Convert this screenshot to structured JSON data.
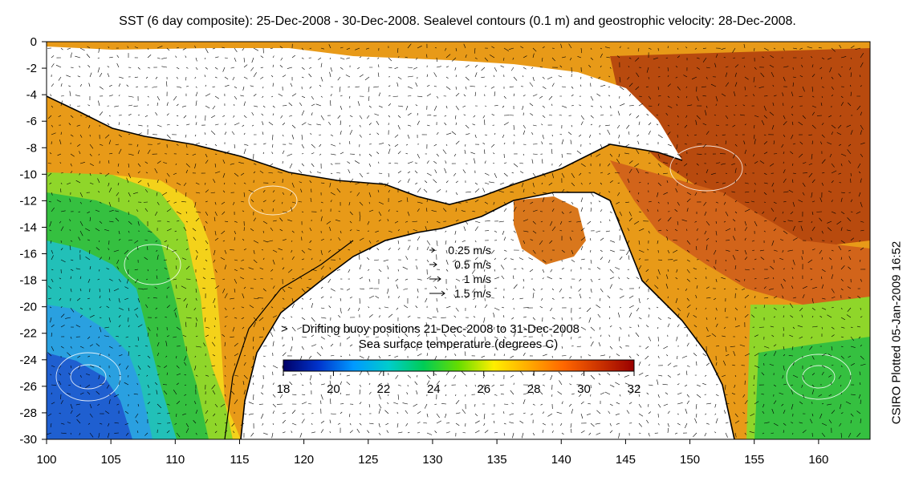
{
  "title": "SST (6 day composite): 25-Dec-2008 - 30-Dec-2008. Sealevel contours (0.1 m) and geostrophic velocity: 28-Dec-2008.",
  "credit": "CSIRO Plotted 05-Jan-2009 16:52",
  "axes": {
    "x_ticks": [
      "100",
      "105",
      "110",
      "115",
      "120",
      "125",
      "130",
      "135",
      "140",
      "145",
      "150",
      "155",
      "160"
    ],
    "x_values": [
      100,
      105,
      110,
      115,
      120,
      125,
      130,
      135,
      140,
      145,
      150,
      155,
      160
    ],
    "y_ticks": [
      "0",
      "-2",
      "-4",
      "-6",
      "-8",
      "-10",
      "-12",
      "-14",
      "-16",
      "-18",
      "-20",
      "-22",
      "-24",
      "-26",
      "-28",
      "-30"
    ],
    "y_values": [
      0,
      -2,
      -4,
      -6,
      -8,
      -10,
      -12,
      -14,
      -16,
      -18,
      -20,
      -22,
      -24,
      -26,
      -28,
      -30
    ],
    "lon_range": [
      100,
      164
    ],
    "lat_range": [
      -30,
      0
    ]
  },
  "velocity_legend": [
    {
      "label": "0.25 m/s",
      "speed": 0.25
    },
    {
      "label": "0.5 m/s",
      "speed": 0.5
    },
    {
      "label": "1 m/s",
      "speed": 1
    },
    {
      "label": "1.5 m/s",
      "speed": 1.5
    }
  ],
  "buoy_legend": {
    "symbol": ">",
    "label": "Drifting buoy positions 21-Dec-2008 to 31-Dec-2008",
    "color": "#ff00ff"
  },
  "colorbar": {
    "label": "Sea surface temperature (degrees C)",
    "ticks": [
      "18",
      "20",
      "22",
      "24",
      "26",
      "28",
      "30",
      "32"
    ],
    "values": [
      18,
      20,
      22,
      24,
      26,
      28,
      30,
      32
    ],
    "colors": [
      "#000066",
      "#0033cc",
      "#0099ff",
      "#00cccc",
      "#00cc55",
      "#66dd00",
      "#ffee00",
      "#ffaa00",
      "#ff6600",
      "#cc3300",
      "#990000"
    ]
  },
  "colors": {
    "land": "#ffffff",
    "coast": "#000000",
    "cold": "#1a5fd6",
    "cool": "#1fc8c0",
    "mild": "#30c030",
    "warm": "#f0a020",
    "hot": "#c85010",
    "hottest": "#a02800",
    "buoy": "#ff00ff"
  }
}
